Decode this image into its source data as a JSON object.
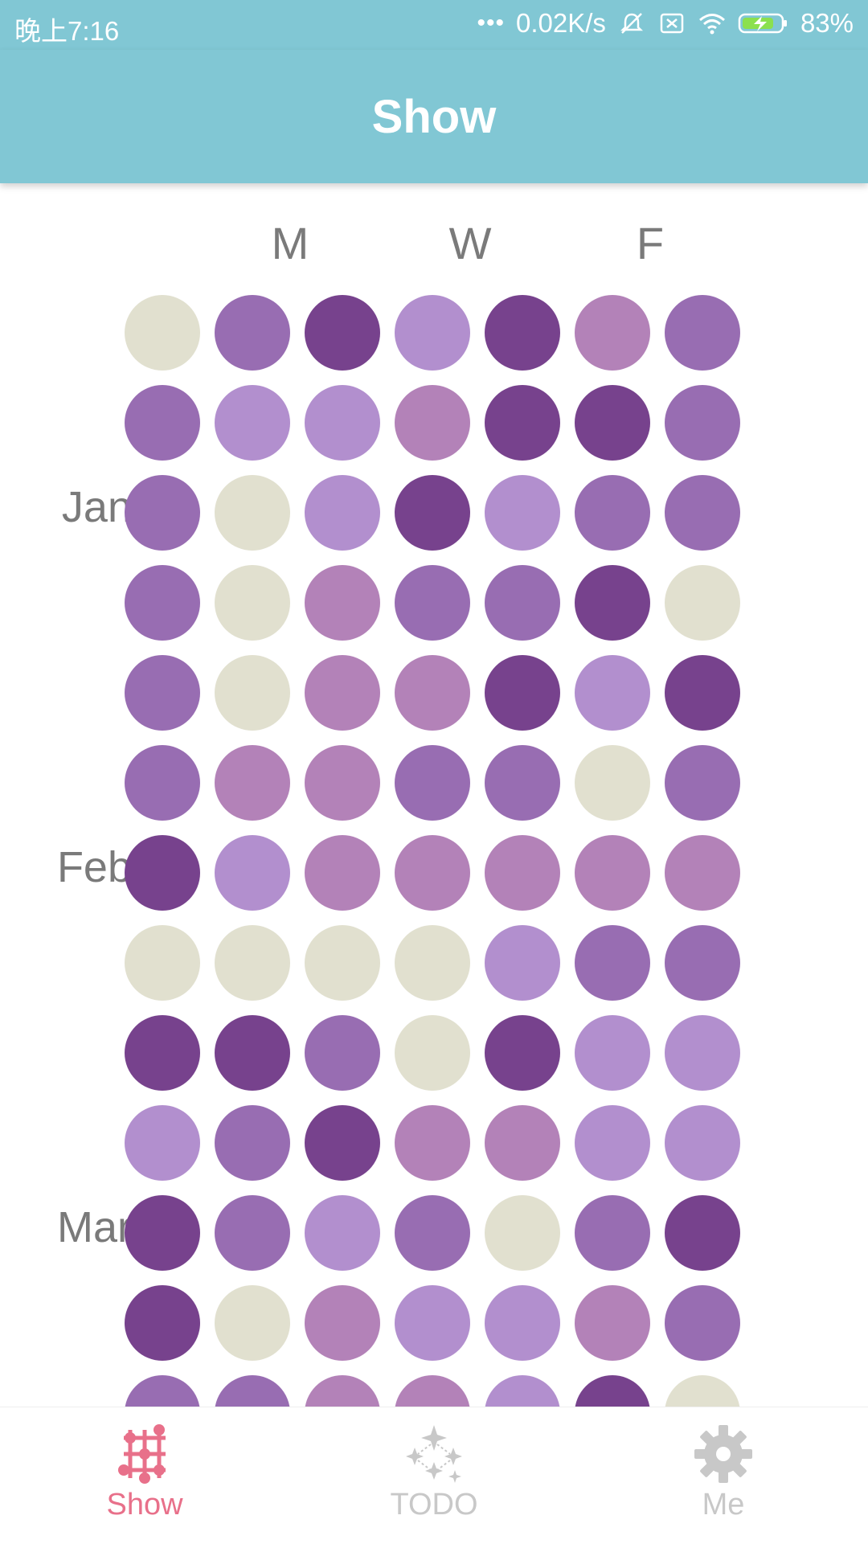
{
  "status_bar": {
    "time": "晚上7:16",
    "net_speed": "0.02K/s",
    "battery": "83%",
    "icons": [
      "dots-icon",
      "mute-icon",
      "sim-icon",
      "wifi-icon",
      "battery-charging-icon"
    ]
  },
  "app_bar": {
    "title": "Show"
  },
  "calendar": {
    "day_headers": [
      "M",
      "W",
      "F"
    ],
    "month_labels": [
      "Jan",
      "Feb",
      "Mar"
    ],
    "level_colors": {
      "0": "#e1e0cf",
      "1": "#b28fce",
      "2": "#b382b8",
      "3": "#986db2",
      "4": "#77428d"
    },
    "rows": [
      [
        0,
        3,
        4,
        1,
        4,
        2,
        3
      ],
      [
        3,
        1,
        1,
        2,
        4,
        4,
        3
      ],
      [
        3,
        0,
        1,
        4,
        1,
        3,
        3
      ],
      [
        3,
        0,
        2,
        3,
        3,
        4,
        0
      ],
      [
        3,
        0,
        2,
        2,
        4,
        1,
        4
      ],
      [
        3,
        2,
        2,
        3,
        3,
        0,
        3
      ],
      [
        4,
        1,
        2,
        2,
        2,
        2,
        2
      ],
      [
        0,
        0,
        0,
        0,
        1,
        3,
        3
      ],
      [
        4,
        4,
        3,
        0,
        4,
        1,
        1
      ],
      [
        1,
        3,
        4,
        2,
        2,
        1,
        1
      ],
      [
        4,
        3,
        1,
        3,
        0,
        3,
        4
      ],
      [
        4,
        0,
        2,
        1,
        1,
        2,
        3
      ],
      [
        3,
        3,
        2,
        2,
        1,
        4,
        0
      ]
    ]
  },
  "bottom_nav": {
    "items": [
      {
        "label": "Show",
        "icon": "grid-nodes-icon",
        "active": true
      },
      {
        "label": "TODO",
        "icon": "sparkle-icon",
        "active": false
      },
      {
        "label": "Me",
        "icon": "gear-icon",
        "active": false
      }
    ],
    "active_color": "#e8708a",
    "inactive_color": "#c8c8c8"
  }
}
